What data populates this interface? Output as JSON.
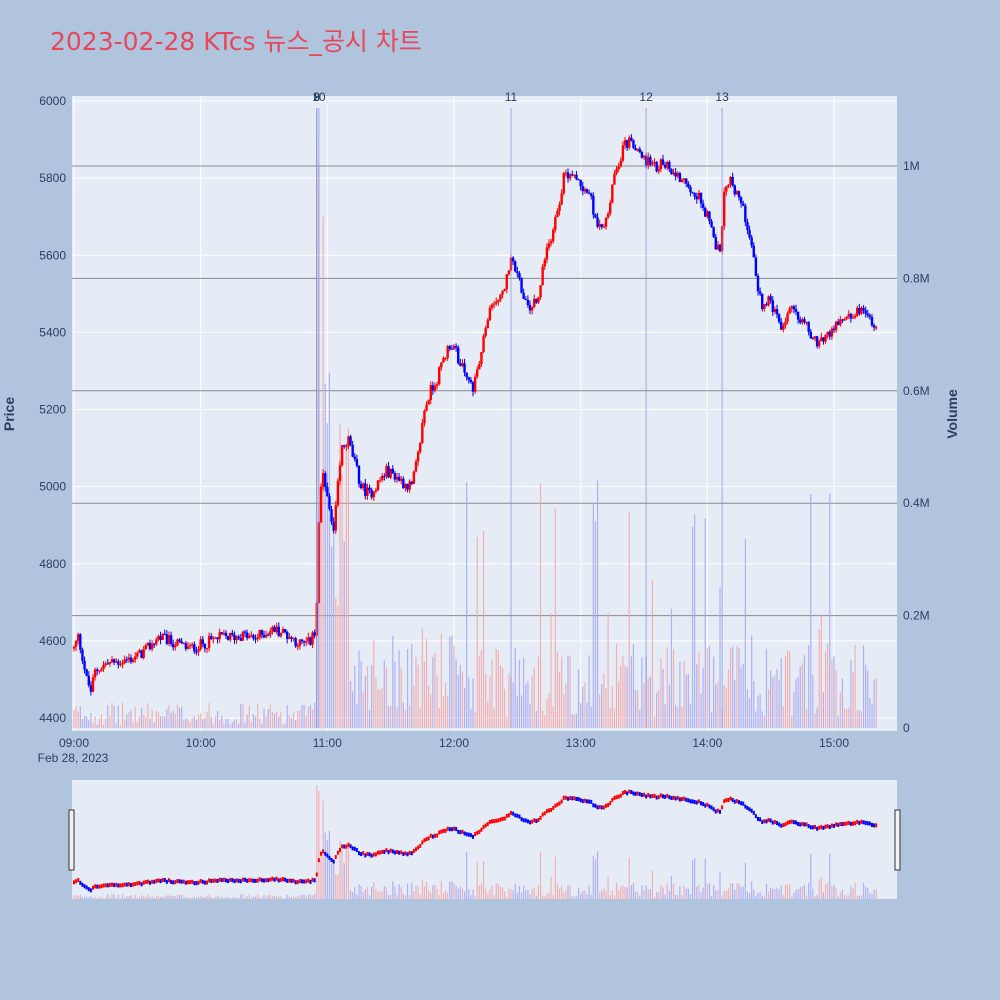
{
  "title": "2023-02-28 KTcs 뉴스_공시 차트",
  "colors": {
    "background": "#b0c4de",
    "plot_bg": "#e5ecf6",
    "up": "#ff0000",
    "down": "#0000ff",
    "title": "#e8465a"
  },
  "chart_data": {
    "type": "candlestick",
    "ylabel": "Price",
    "y2label": "Volume",
    "date_label": "Feb 28, 2023",
    "x_ticks": [
      "09:00",
      "10:00",
      "11:00",
      "12:00",
      "13:00",
      "14:00",
      "15:00"
    ],
    "y_ticks": [
      "4400",
      "4600",
      "4800",
      "5000",
      "5200",
      "5400",
      "5600",
      "5800",
      "6000"
    ],
    "y2_ticks": [
      "0",
      "0.2M",
      "0.4M",
      "0.6M",
      "0.8M",
      "1M"
    ],
    "ylim": [
      4370,
      6000
    ],
    "y2lim": [
      0,
      1120000
    ],
    "hlines_volume": [
      200000,
      400000,
      600000,
      800000,
      1000000
    ],
    "news_markers": [
      {
        "label": "8",
        "time": "10:55"
      },
      {
        "label": "9",
        "time": "10:55"
      },
      {
        "label": "10",
        "time": "10:56"
      },
      {
        "label": "11",
        "time": "12:27"
      },
      {
        "label": "12",
        "time": "13:31"
      },
      {
        "label": "13",
        "time": "14:07"
      }
    ],
    "price_path": [
      [
        "09:00",
        4580
      ],
      [
        "09:02",
        4610
      ],
      [
        "09:04",
        4560
      ],
      [
        "09:06",
        4500
      ],
      [
        "09:08",
        4470
      ],
      [
        "09:10",
        4520
      ],
      [
        "09:12",
        4530
      ],
      [
        "09:15",
        4540
      ],
      [
        "09:20",
        4545
      ],
      [
        "09:25",
        4550
      ],
      [
        "09:30",
        4560
      ],
      [
        "09:35",
        4580
      ],
      [
        "09:40",
        4610
      ],
      [
        "09:45",
        4600
      ],
      [
        "09:50",
        4590
      ],
      [
        "09:55",
        4580
      ],
      [
        "10:00",
        4590
      ],
      [
        "10:05",
        4600
      ],
      [
        "10:10",
        4610
      ],
      [
        "10:15",
        4610
      ],
      [
        "10:20",
        4615
      ],
      [
        "10:25",
        4605
      ],
      [
        "10:30",
        4620
      ],
      [
        "10:35",
        4630
      ],
      [
        "10:40",
        4620
      ],
      [
        "10:45",
        4600
      ],
      [
        "10:48",
        4590
      ],
      [
        "10:52",
        4600
      ],
      [
        "10:54",
        4620
      ],
      [
        "10:55",
        4700
      ],
      [
        "10:56",
        4900
      ],
      [
        "10:57",
        5000
      ],
      [
        "10:58",
        5020
      ],
      [
        "10:59",
        5000
      ],
      [
        "11:00",
        4990
      ],
      [
        "11:01",
        4930
      ],
      [
        "11:03",
        4880
      ],
      [
        "11:05",
        5000
      ],
      [
        "11:07",
        5100
      ],
      [
        "11:10",
        5120
      ],
      [
        "11:13",
        5060
      ],
      [
        "11:16",
        5000
      ],
      [
        "11:20",
        4980
      ],
      [
        "11:24",
        5010
      ],
      [
        "11:28",
        5040
      ],
      [
        "11:32",
        5030
      ],
      [
        "11:36",
        5010
      ],
      [
        "11:40",
        5000
      ],
      [
        "11:43",
        5080
      ],
      [
        "11:46",
        5200
      ],
      [
        "11:49",
        5250
      ],
      [
        "11:52",
        5280
      ],
      [
        "11:55",
        5330
      ],
      [
        "11:58",
        5370
      ],
      [
        "12:00",
        5360
      ],
      [
        "12:03",
        5320
      ],
      [
        "12:06",
        5280
      ],
      [
        "12:09",
        5260
      ],
      [
        "12:12",
        5320
      ],
      [
        "12:15",
        5410
      ],
      [
        "12:18",
        5470
      ],
      [
        "12:21",
        5490
      ],
      [
        "12:24",
        5520
      ],
      [
        "12:27",
        5580
      ],
      [
        "12:30",
        5560
      ],
      [
        "12:33",
        5480
      ],
      [
        "12:36",
        5460
      ],
      [
        "12:40",
        5490
      ],
      [
        "12:43",
        5600
      ],
      [
        "12:46",
        5650
      ],
      [
        "12:49",
        5720
      ],
      [
        "12:52",
        5800
      ],
      [
        "12:55",
        5820
      ],
      [
        "12:58",
        5790
      ],
      [
        "13:01",
        5780
      ],
      [
        "13:04",
        5760
      ],
      [
        "13:07",
        5700
      ],
      [
        "13:10",
        5660
      ],
      [
        "13:13",
        5720
      ],
      [
        "13:16",
        5800
      ],
      [
        "13:20",
        5880
      ],
      [
        "13:23",
        5900
      ],
      [
        "13:26",
        5870
      ],
      [
        "13:30",
        5850
      ],
      [
        "13:35",
        5830
      ],
      [
        "13:40",
        5840
      ],
      [
        "13:45",
        5810
      ],
      [
        "13:50",
        5790
      ],
      [
        "13:55",
        5760
      ],
      [
        "14:00",
        5700
      ],
      [
        "14:03",
        5640
      ],
      [
        "14:06",
        5600
      ],
      [
        "14:08",
        5780
      ],
      [
        "14:11",
        5790
      ],
      [
        "14:14",
        5760
      ],
      [
        "14:17",
        5720
      ],
      [
        "14:20",
        5660
      ],
      [
        "14:23",
        5540
      ],
      [
        "14:26",
        5470
      ],
      [
        "14:29",
        5480
      ],
      [
        "14:32",
        5450
      ],
      [
        "14:35",
        5400
      ],
      [
        "14:38",
        5450
      ],
      [
        "14:41",
        5460
      ],
      [
        "14:44",
        5440
      ],
      [
        "14:47",
        5420
      ],
      [
        "14:50",
        5380
      ],
      [
        "14:53",
        5370
      ],
      [
        "14:56",
        5390
      ],
      [
        "15:00",
        5410
      ],
      [
        "15:03",
        5430
      ],
      [
        "15:06",
        5450
      ],
      [
        "15:09",
        5440
      ],
      [
        "15:12",
        5460
      ],
      [
        "15:15",
        5440
      ],
      [
        "15:18",
        5430
      ],
      [
        "15:20",
        5420
      ]
    ]
  }
}
